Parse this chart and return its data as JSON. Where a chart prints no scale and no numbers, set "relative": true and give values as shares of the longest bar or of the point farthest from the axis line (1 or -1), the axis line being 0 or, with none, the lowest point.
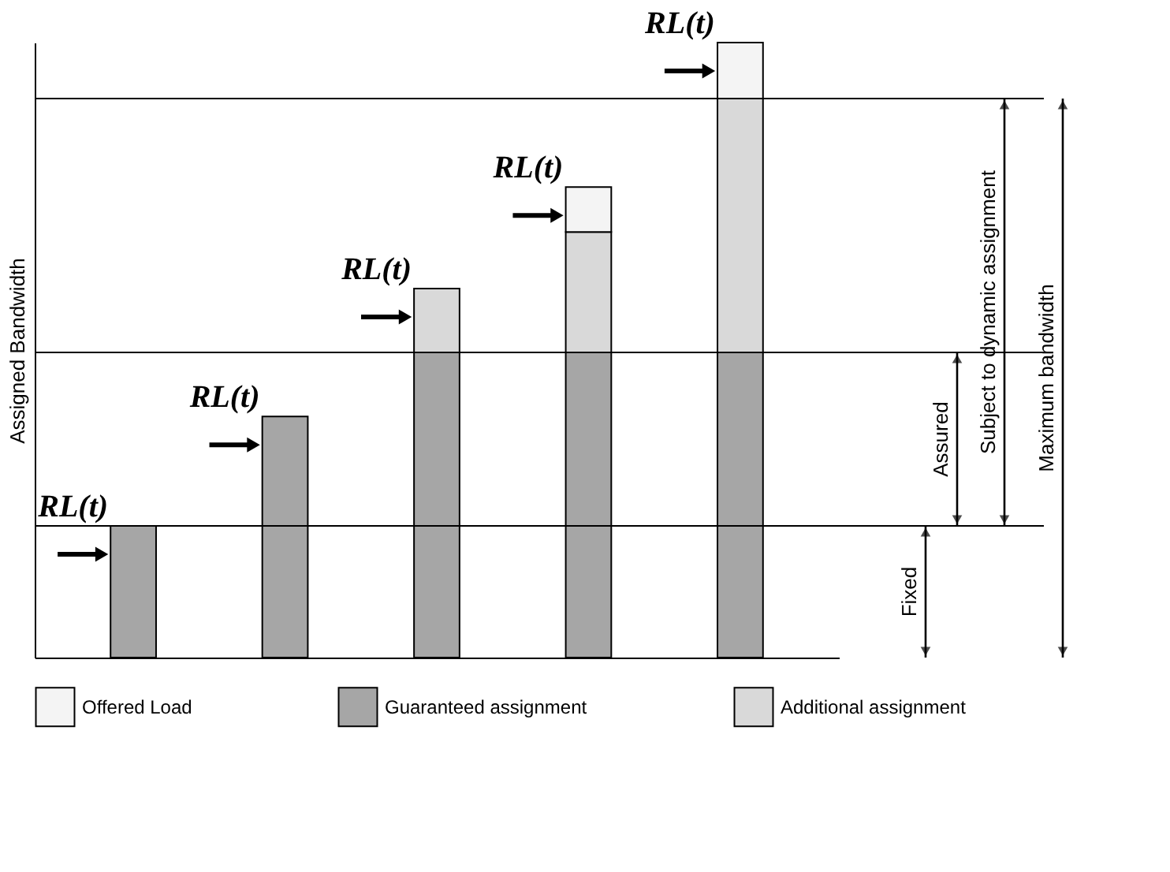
{
  "chart_data": {
    "type": "bar",
    "stacked": true,
    "relative": true,
    "ylabel": "Assigned Bandwidth",
    "categories": [
      null,
      null,
      null,
      null,
      null
    ],
    "series": [
      {
        "name": "Guaranteed assignment",
        "color": "#a6a6a6",
        "values": [
          0.214,
          0.392,
          0.496,
          0.496,
          0.496
        ]
      },
      {
        "name": "Additional assignment",
        "color": "#d9d9d9",
        "values": [
          null,
          null,
          0.104,
          0.196,
          0.413
        ]
      },
      {
        "name": "Offered Load",
        "color": "#f4f4f4",
        "values": [
          null,
          null,
          null,
          0.073,
          0.091
        ]
      }
    ],
    "legend": "bottom",
    "grid": false,
    "tick_labels": false,
    "ref_lines": [
      {
        "axis": "y",
        "value": 0.214,
        "color": "#000000"
      },
      {
        "axis": "y",
        "value": 0.496,
        "color": "#000000"
      },
      {
        "axis": "y",
        "value": 0.909,
        "color": "#000000"
      }
    ],
    "annotations": [
      "RL(t)",
      "RL(t)",
      "RL(t)",
      "RL(t)",
      "RL(t)",
      "Fixed",
      "Assured",
      "Subject to dynamic assignment",
      "Maximum bandwidth"
    ]
  }
}
